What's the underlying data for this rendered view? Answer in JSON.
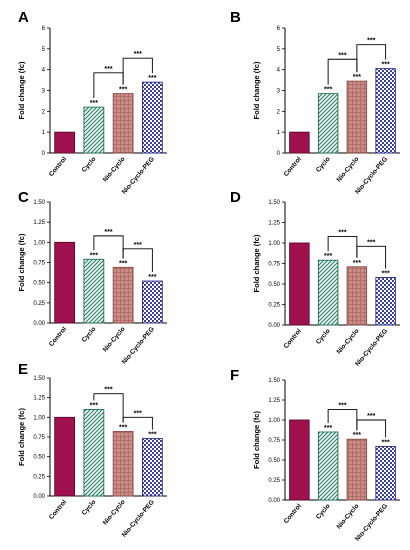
{
  "patterns": {
    "Control": {
      "type": "solid",
      "fill": "#a0124e",
      "stroke": "#5a0a2b"
    },
    "Cyclo": {
      "type": "diag",
      "fill": "#ffffff",
      "line": "#2e8b6a",
      "stroke": "#1f6f52"
    },
    "Nio-Cyclo": {
      "type": "grid",
      "fill": "#c98d88",
      "line": "#a86560",
      "stroke": "#8a4a45"
    },
    "Nio-Cyclo-PEG": {
      "type": "check",
      "fill": "#ffffff",
      "line": "#3b3fa0",
      "stroke": "#2a2e86"
    }
  },
  "chart_data": [
    {
      "panel": "A",
      "type": "bar",
      "ylabel": "Fold change (fc)",
      "categories": [
        "Control",
        "Cyclo",
        "Nio-Cyclo",
        "Nio-Cyclo-PEG"
      ],
      "values": [
        1.0,
        2.2,
        2.85,
        3.4
      ],
      "ylim": [
        0,
        6
      ],
      "yticks": [
        "0",
        "1",
        "2",
        "3",
        "4",
        "5",
        "6"
      ],
      "annotations": [
        "",
        "***",
        "***",
        "***"
      ],
      "brackets": [
        {
          "from": 1,
          "to": 2,
          "level": 3.85,
          "label": "***"
        },
        {
          "from": 2,
          "to": 3,
          "level": 4.55,
          "label": "***"
        }
      ]
    },
    {
      "panel": "B",
      "type": "bar",
      "ylabel": "Fold change (fc)",
      "categories": [
        "Control",
        "Cyclo",
        "Nio-Cyclo",
        "Nio-Cyclo-PEG"
      ],
      "values": [
        1.0,
        2.85,
        3.45,
        4.05
      ],
      "ylim": [
        0,
        6
      ],
      "yticks": [
        "0",
        "1",
        "2",
        "3",
        "4",
        "5",
        "6"
      ],
      "annotations": [
        "",
        "***",
        "***",
        "***"
      ],
      "brackets": [
        {
          "from": 1,
          "to": 2,
          "level": 4.5,
          "label": "***"
        },
        {
          "from": 2,
          "to": 3,
          "level": 5.2,
          "label": "***"
        }
      ]
    },
    {
      "panel": "C",
      "type": "bar",
      "ylabel": "Fold change (fc)",
      "categories": [
        "Control",
        "Cyclo",
        "Nio-Cyclo",
        "Nio-Cyclo-PEG"
      ],
      "values": [
        1.0,
        0.79,
        0.69,
        0.52
      ],
      "ylim": [
        0,
        1.5
      ],
      "yticks": [
        "0.00",
        "0.25",
        "0.50",
        "0.75",
        "1.00",
        "1.25",
        "1.50"
      ],
      "annotations": [
        "",
        "***",
        "***",
        "***"
      ],
      "brackets": [
        {
          "from": 1,
          "to": 2,
          "level": 1.08,
          "label": "***"
        },
        {
          "from": 2,
          "to": 3,
          "level": 0.92,
          "label": "***"
        }
      ]
    },
    {
      "panel": "D",
      "type": "bar",
      "ylabel": "Fold change (fc)",
      "categories": [
        "Control",
        "Cyclo",
        "Nio-Cyclo",
        "Nio-Cyclo-PEG"
      ],
      "values": [
        1.0,
        0.79,
        0.71,
        0.58
      ],
      "ylim": [
        0,
        1.5
      ],
      "yticks": [
        "0.00",
        "0.25",
        "0.50",
        "0.75",
        "1.00",
        "1.25",
        "1.50"
      ],
      "annotations": [
        "",
        "***",
        "***",
        "***"
      ],
      "brackets": [
        {
          "from": 1,
          "to": 2,
          "level": 1.08,
          "label": "***"
        },
        {
          "from": 2,
          "to": 3,
          "level": 0.96,
          "label": "***"
        }
      ]
    },
    {
      "panel": "E",
      "type": "bar",
      "ylabel": "Fold change (fc)",
      "categories": [
        "Control",
        "Cyclo",
        "Nio-Cyclo",
        "Nio-Cyclo-PEG"
      ],
      "values": [
        1.0,
        1.1,
        0.82,
        0.73
      ],
      "ylim": [
        0,
        1.5
      ],
      "yticks": [
        "0.00",
        "0.25",
        "0.50",
        "0.75",
        "1.00",
        "1.25",
        "1.50"
      ],
      "annotations": [
        "",
        "***",
        "***",
        "***"
      ],
      "brackets": [
        {
          "from": 1,
          "to": 2,
          "level": 1.3,
          "label": "***"
        },
        {
          "from": 2,
          "to": 3,
          "level": 1.0,
          "label": "***"
        }
      ]
    },
    {
      "panel": "F",
      "type": "bar",
      "ylabel": "Fold change (fc)",
      "categories": [
        "Control",
        "Cyclo",
        "Nio-Cyclo",
        "Nio-Cyclo-PEG"
      ],
      "values": [
        1.0,
        0.85,
        0.76,
        0.67
      ],
      "ylim": [
        0,
        1.5
      ],
      "yticks": [
        "0.00",
        "0.25",
        "0.50",
        "0.75",
        "1.00",
        "1.25",
        "1.50"
      ],
      "annotations": [
        "",
        "***",
        "***",
        "***"
      ],
      "brackets": [
        {
          "from": 1,
          "to": 2,
          "level": 1.13,
          "label": "***"
        },
        {
          "from": 2,
          "to": 3,
          "level": 1.0,
          "label": "***"
        }
      ]
    }
  ]
}
